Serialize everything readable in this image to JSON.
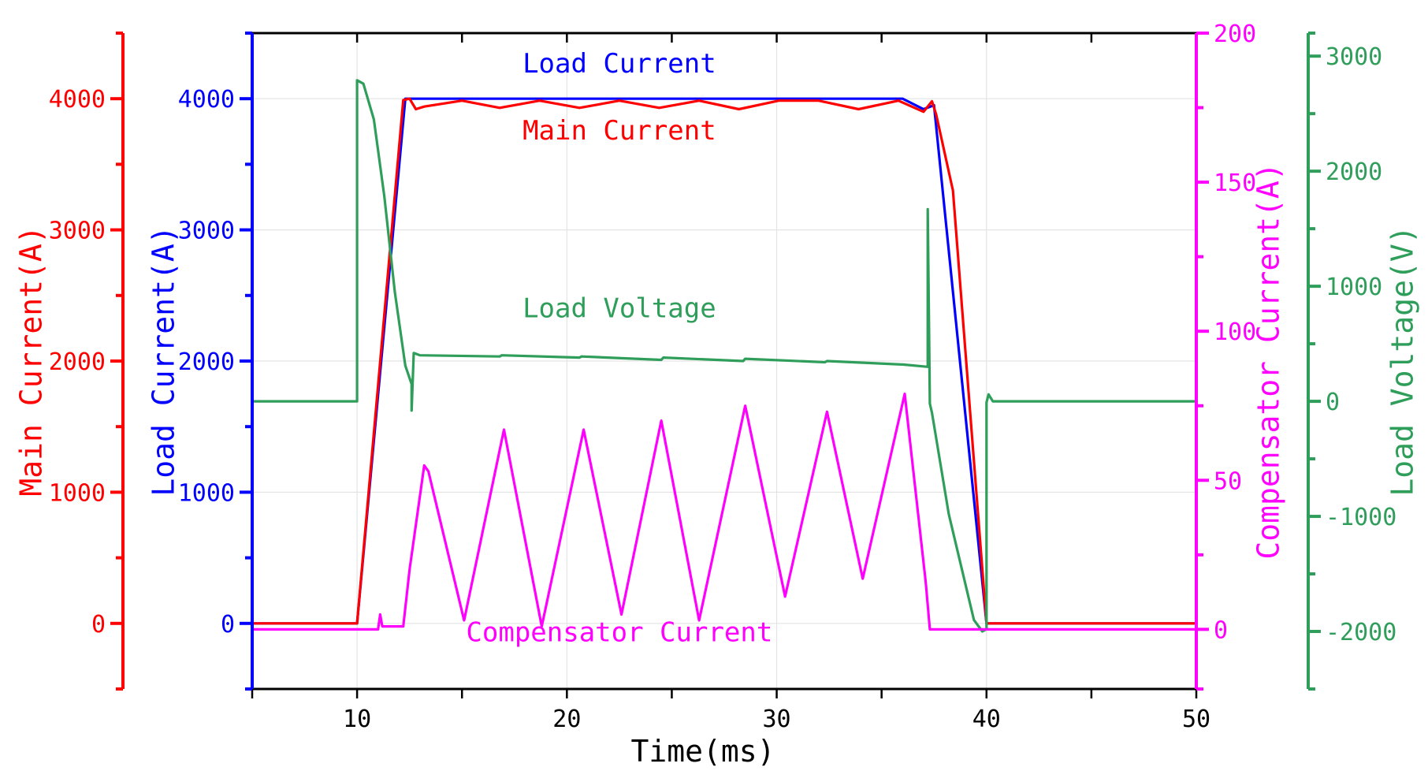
{
  "chart_data": {
    "type": "line",
    "xlabel": "Time(ms)",
    "xlim": [
      5,
      50
    ],
    "xticks": [
      "10",
      "20",
      "30",
      "40",
      "50"
    ],
    "grid": true,
    "axes": [
      {
        "id": "main",
        "label": "Main Current(A)",
        "color": "#ff0000",
        "ylim": [
          -500,
          4500
        ],
        "ticks": [
          {
            "v": 0,
            "t": "0"
          },
          {
            "v": 1000,
            "t": "1000"
          },
          {
            "v": 2000,
            "t": "2000"
          },
          {
            "v": 3000,
            "t": "3000"
          },
          {
            "v": 4000,
            "t": "4000"
          }
        ]
      },
      {
        "id": "load",
        "label": "Load Current(A)",
        "color": "#0000ff",
        "ylim": [
          -500,
          4500
        ],
        "ticks": [
          {
            "v": 0,
            "t": "0"
          },
          {
            "v": 1000,
            "t": "1000"
          },
          {
            "v": 2000,
            "t": "2000"
          },
          {
            "v": 3000,
            "t": "3000"
          },
          {
            "v": 4000,
            "t": "4000"
          }
        ]
      },
      {
        "id": "comp",
        "label": "Compensator Current(A)",
        "color": "#ff00ff",
        "ylim": [
          -20,
          200
        ],
        "ticks": [
          {
            "v": 0,
            "t": "0"
          },
          {
            "v": 50,
            "t": "50"
          },
          {
            "v": 100,
            "t": "100"
          },
          {
            "v": 150,
            "t": "150"
          },
          {
            "v": 200,
            "t": "200"
          }
        ]
      },
      {
        "id": "volt",
        "label": "Load Voltage(V)",
        "color": "#2e9e5a",
        "ylim": [
          -2500,
          3200
        ],
        "ticks": [
          {
            "v": -2000,
            "t": "-2000"
          },
          {
            "v": -1000,
            "t": "-1000"
          },
          {
            "v": 0,
            "t": "0"
          },
          {
            "v": 1000,
            "t": "1000"
          },
          {
            "v": 2000,
            "t": "2000"
          },
          {
            "v": 3000,
            "t": "3000"
          }
        ]
      }
    ],
    "series": [
      {
        "name": "Load Current",
        "axis": "load",
        "color": "#0000ff",
        "x": [
          5,
          10,
          12.3,
          13.3,
          36,
          37,
          37.5,
          40,
          50
        ],
        "y": [
          0,
          0,
          4000,
          4000,
          4000,
          3920,
          3950,
          0,
          0
        ]
      },
      {
        "name": "Main Current",
        "axis": "main",
        "color": "#ff0000",
        "x": [
          5,
          10,
          12.2,
          12.5,
          12.8,
          13.2,
          15,
          16.8,
          18.7,
          20.6,
          22.5,
          24.4,
          26.3,
          28.2,
          30.1,
          32,
          33.9,
          35.8,
          37,
          37.4,
          37.6,
          38.4,
          40,
          50
        ],
        "y": [
          0,
          0,
          3990,
          4000,
          3920,
          3940,
          3985,
          3930,
          3985,
          3930,
          3985,
          3930,
          3985,
          3920,
          3985,
          3985,
          3920,
          3985,
          3900,
          3980,
          3880,
          3300,
          0,
          0
        ]
      },
      {
        "name": "Load Voltage",
        "axis": "volt",
        "color": "#2e9e5a",
        "x": [
          5,
          10,
          10,
          10.3,
          10.8,
          11.3,
          11.8,
          12.3,
          12.6,
          12.6,
          12.7,
          13,
          16.8,
          16.9,
          20.6,
          20.7,
          24.5,
          24.6,
          28.4,
          28.5,
          32.3,
          32.4,
          36,
          37.2,
          37.2,
          37.3,
          37.4,
          38.2,
          39.4,
          39.8,
          40,
          40,
          40.1,
          40.3,
          50
        ],
        "y": [
          0,
          0,
          2790,
          2760,
          2450,
          1780,
          950,
          310,
          150,
          -80,
          420,
          400,
          390,
          400,
          380,
          390,
          360,
          380,
          350,
          370,
          340,
          350,
          320,
          300,
          1670,
          -20,
          -100,
          -980,
          -1900,
          -2000,
          -1980,
          -10,
          60,
          0,
          0
        ]
      },
      {
        "name": "Compensator Current",
        "axis": "comp",
        "color": "#ff00ff",
        "x": [
          5,
          11,
          11.1,
          11.2,
          12.2,
          12.5,
          13.2,
          13.4,
          15.1,
          17,
          18.8,
          20.8,
          22.6,
          24.5,
          26.3,
          28.5,
          30.4,
          32.4,
          34.1,
          36.1,
          37.1,
          37.3,
          50
        ],
        "y": [
          0,
          0,
          5,
          1,
          1,
          20,
          55,
          53,
          3,
          67,
          1,
          67,
          5,
          70,
          3,
          75,
          11,
          73,
          17,
          79,
          16,
          0,
          0
        ]
      }
    ],
    "annotations": [
      {
        "text": "Load Current",
        "x": 22.5,
        "axis": "load",
        "y": 4200,
        "color": "#0000ff"
      },
      {
        "text": "Main Current",
        "x": 22.5,
        "axis": "main",
        "y": 3690,
        "color": "#ff0000"
      },
      {
        "text": "Load Voltage",
        "x": 22.5,
        "axis": "volt",
        "y": 730,
        "color": "#2e9e5a"
      },
      {
        "text": "Compensator Current",
        "x": 22.5,
        "axis": "comp",
        "y": -4,
        "color": "#ff00ff"
      }
    ]
  }
}
